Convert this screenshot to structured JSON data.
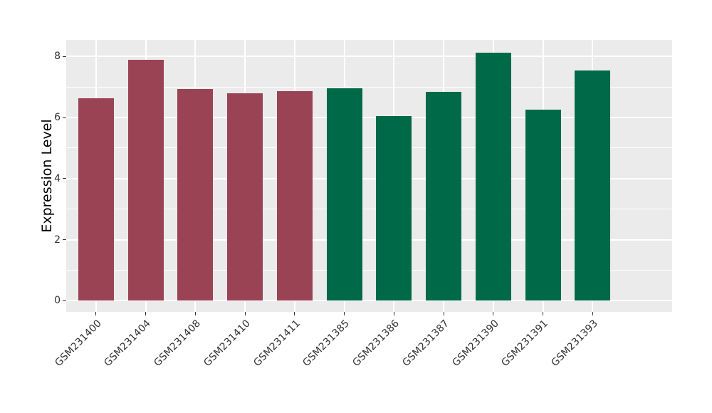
{
  "chart_data": {
    "type": "bar",
    "title": "",
    "xlabel": "",
    "ylabel": "Expression Level",
    "categories": [
      "GSM231400",
      "GSM231404",
      "GSM231408",
      "GSM231410",
      "GSM231411",
      "GSM231385",
      "GSM231386",
      "GSM231387",
      "GSM231390",
      "GSM231391",
      "GSM231393"
    ],
    "values": [
      6.64,
      7.89,
      6.94,
      6.79,
      6.87,
      6.96,
      6.04,
      6.83,
      8.12,
      6.26,
      7.54
    ],
    "bar_colors": [
      "#9A4354",
      "#9A4354",
      "#9A4354",
      "#9A4354",
      "#9A4354",
      "#006948",
      "#006948",
      "#006948",
      "#006948",
      "#006948",
      "#006948"
    ],
    "ylim": [
      0,
      8.5
    ],
    "yticks": [
      0,
      2,
      4,
      6,
      8
    ],
    "yticks_minor": [
      1,
      3,
      5,
      7
    ],
    "x_label_rotation_deg": 45,
    "legend": "none",
    "grid": "on",
    "style": {
      "figure_background": "#FFFFFF",
      "panel_background": "#EBEBEB",
      "grid_major_color": "#FFFFFF",
      "grid_minor_color": "#FFFFFF",
      "tick_mark_color": "#333333",
      "axis_text_color": "#333333",
      "axis_title_color": "#000000"
    }
  }
}
